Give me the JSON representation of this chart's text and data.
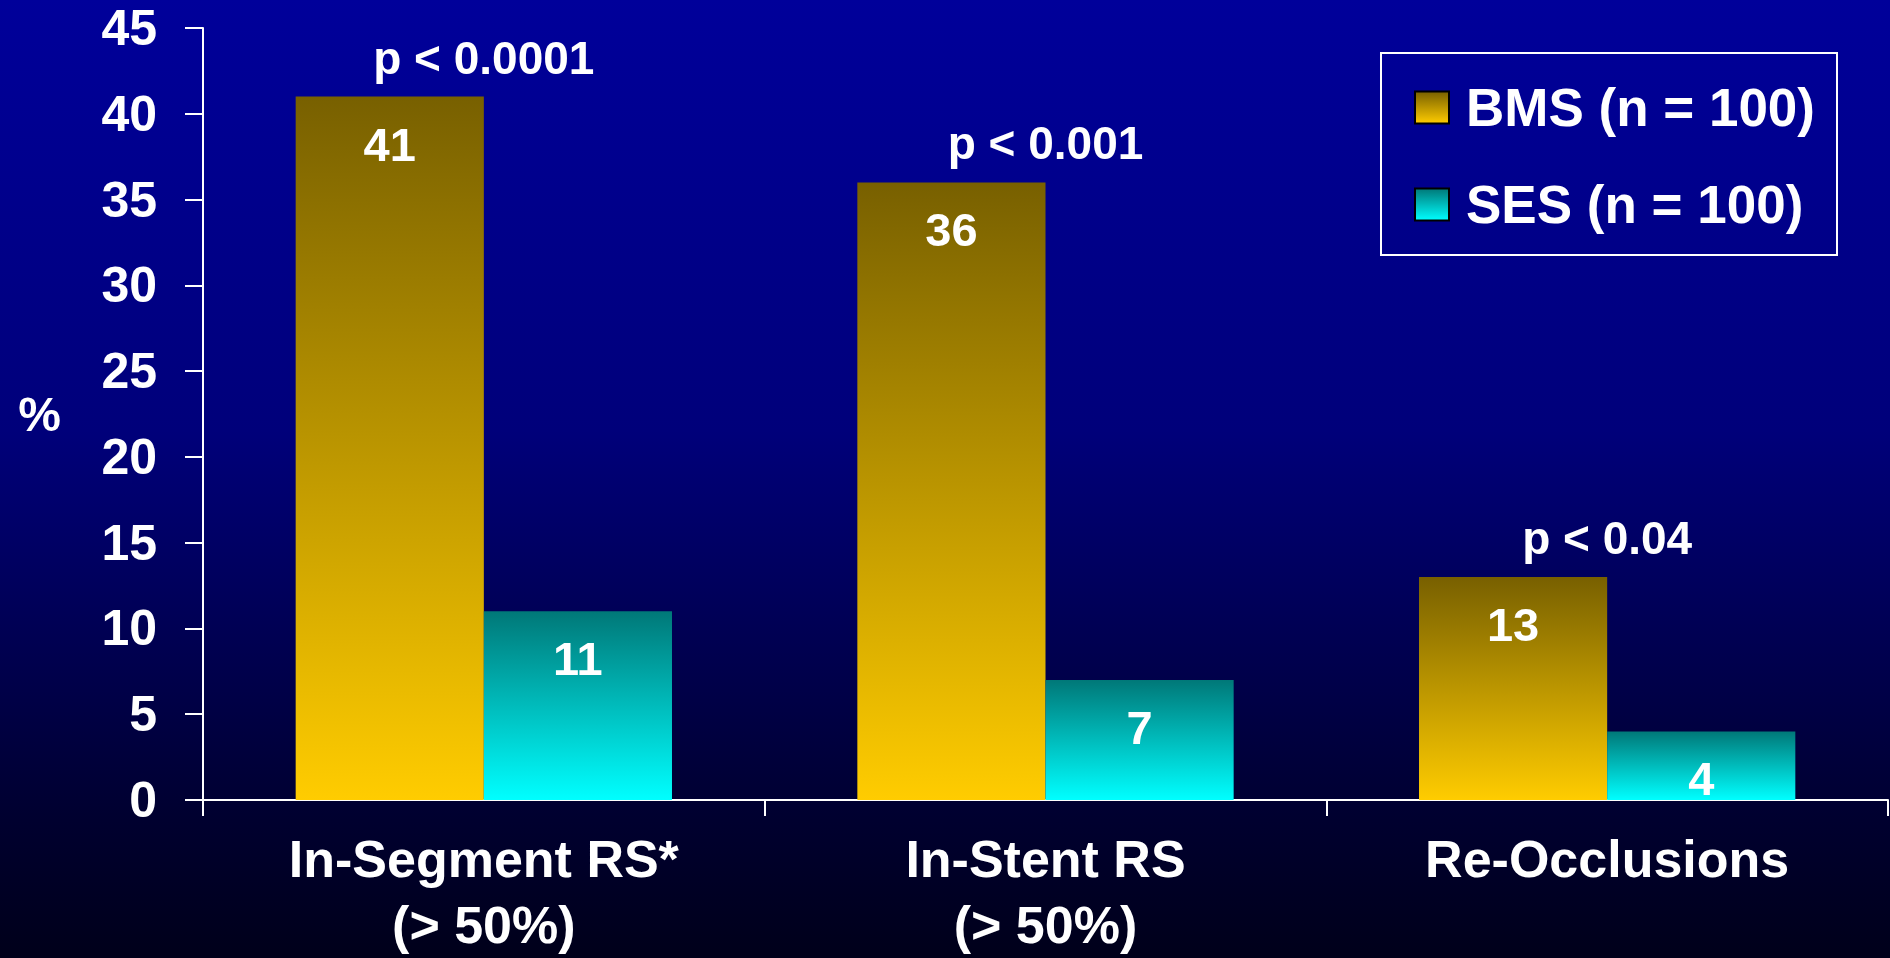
{
  "chart_data": {
    "type": "bar",
    "ylabel": "%",
    "categories": [
      "In-Segment RS*\n(> 50%)",
      "In-Stent RS\n(> 50%)",
      "Re-Occlusions"
    ],
    "series": [
      {
        "name": "BMS (n = 100)",
        "color": "#ffcc00",
        "values": [
          41,
          36,
          13
        ]
      },
      {
        "name": "SES (n = 100)",
        "color": "#00ffff",
        "values": [
          11,
          7,
          4
        ]
      }
    ],
    "ylim": [
      0,
      45
    ],
    "yticks": [
      0,
      5,
      10,
      15,
      20,
      25,
      30,
      35,
      40,
      45
    ],
    "data_labels": true,
    "legend": "top right",
    "annotations": [
      "p < 0.0001",
      "p < 0.001",
      "p < 0.04"
    ]
  }
}
